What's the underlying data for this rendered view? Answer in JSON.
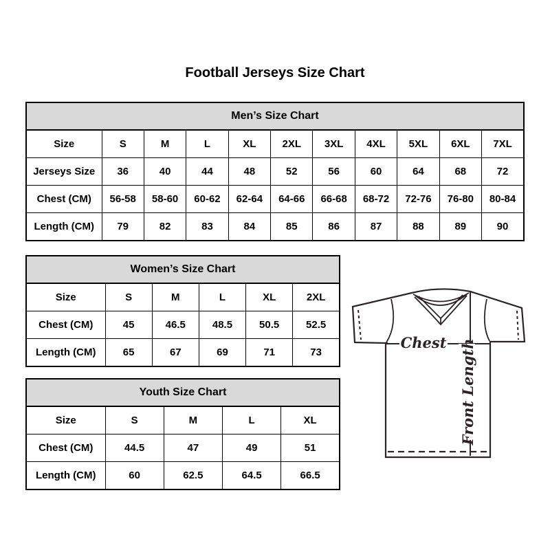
{
  "title": "Football Jerseys Size Chart",
  "tables": [
    {
      "id": "mens",
      "title": "Men’s Size Chart",
      "rows": [
        [
          "Size",
          "S",
          "M",
          "L",
          "XL",
          "2XL",
          "3XL",
          "4XL",
          "5XL",
          "6XL",
          "7XL"
        ],
        [
          "Jerseys Size",
          "36",
          "40",
          "44",
          "48",
          "52",
          "56",
          "60",
          "64",
          "68",
          "72"
        ],
        [
          "Chest (CM)",
          "56-58",
          "58-60",
          "60-62",
          "62-64",
          "64-66",
          "66-68",
          "68-72",
          "72-76",
          "76-80",
          "80-84"
        ],
        [
          "Length (CM)",
          "79",
          "82",
          "83",
          "84",
          "85",
          "86",
          "87",
          "88",
          "89",
          "90"
        ]
      ]
    },
    {
      "id": "womens",
      "title": "Women’s Size Chart",
      "rows": [
        [
          "Size",
          "S",
          "M",
          "L",
          "XL",
          "2XL"
        ],
        [
          "Chest (CM)",
          "45",
          "46.5",
          "48.5",
          "50.5",
          "52.5"
        ],
        [
          "Length (CM)",
          "65",
          "67",
          "69",
          "71",
          "73"
        ]
      ]
    },
    {
      "id": "youth",
      "title": "Youth Size Chart",
      "rows": [
        [
          "Size",
          "S",
          "M",
          "L",
          "XL"
        ],
        [
          "Chest (CM)",
          "44.5",
          "47",
          "49",
          "51"
        ],
        [
          "Length (CM)",
          "60",
          "62.5",
          "64.5",
          "66.5"
        ]
      ]
    }
  ],
  "diagram": {
    "chest_label": "Chest",
    "front_length_label": "Front Length"
  },
  "colors": {
    "page_bg": "#ffffff",
    "header_bg": "#d9d9d9",
    "border": "#000000",
    "text": "#000000",
    "diagram_line": "#2b2325"
  }
}
